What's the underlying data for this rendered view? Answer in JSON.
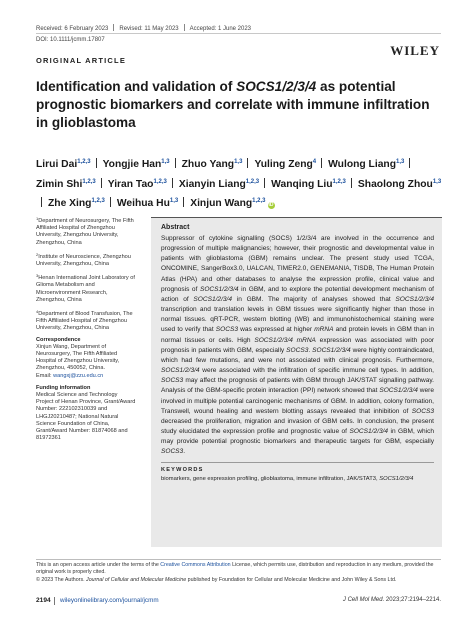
{
  "header": {
    "received": "Received: 6 February 2023",
    "revised": "Revised: 11 May 2023",
    "accepted": "Accepted: 1 June 2023",
    "doi": "DOI: 10.1111/jcmm.17807",
    "publisher": "WILEY",
    "article_type": "ORIGINAL ARTICLE"
  },
  "title": {
    "part1": "Identification and validation of ",
    "gene": "SOCS1/2/3/4",
    "part2": " as potential prognostic biomarkers and correlate with immune infiltration in glioblastoma"
  },
  "authors": [
    {
      "name": "Lirui Dai",
      "sup": "1,2,3"
    },
    {
      "name": "Yongjie Han",
      "sup": "1,3"
    },
    {
      "name": "Zhuo Yang",
      "sup": "1,3"
    },
    {
      "name": "Yuling Zeng",
      "sup": "4"
    },
    {
      "name": "Wulong Liang",
      "sup": "1,3"
    },
    {
      "name": "Zimin Shi",
      "sup": "1,2,3"
    },
    {
      "name": "Yiran Tao",
      "sup": "1,2,3"
    },
    {
      "name": "Xianyin Liang",
      "sup": "1,2,3"
    },
    {
      "name": "Wanqing Liu",
      "sup": "1,2,3"
    },
    {
      "name": "Shaolong Zhou",
      "sup": "1,3"
    },
    {
      "name": "Zhe Xing",
      "sup": "1,2,3"
    },
    {
      "name": "Weihua Hu",
      "sup": "1,3"
    },
    {
      "name": "Xinjun Wang",
      "sup": "1,2,3"
    }
  ],
  "affiliations": [
    {
      "sup": "1",
      "text": "Department of Neurosurgery, The Fifth Affiliated Hospital of Zhengzhou University, Zhengzhou University, Zhengzhou, China"
    },
    {
      "sup": "2",
      "text": "Institute of Neuroscience, Zhengzhou University, Zhengzhou, China"
    },
    {
      "sup": "3",
      "text": "Henan International Joint Laboratory of Glioma Metabolism and Microenvironment Research, Zhengzhou, China"
    },
    {
      "sup": "4",
      "text": "Department of Blood Transfusion, The Fifth Affiliated Hospital of Zhengzhou University, Zhengzhou, China"
    }
  ],
  "correspondence": {
    "heading": "Correspondence",
    "text": "Xinjun Wang, Department of Neurosurgery, The Fifth Affiliated Hospital of Zhengzhou University, Zhengzhou, 450052, China.",
    "email_label": "Email: ",
    "email": "wangxj@zzu.edu.cn"
  },
  "funding": {
    "heading": "Funding information",
    "text": "Medical Science and Technology Project of Henan Province, Grant/Award Number: 222102310039 and LHGJ20210487; National Natural Science Foundation of China, Grant/Award Number: 81874068 and 81972361"
  },
  "abstract": {
    "heading": "Abstract",
    "segments": [
      {
        "t": "Suppressor of cytokine signalling (SOCS) 1/2/3/4 are involved in the occurrence and progression of multiple malignancies; however, their prognostic and developmental value in patients with glioblastoma (GBM) remains unclear. The present study used TCGA, ONCOMINE, SangerBox3.0, UALCAN, TIMER2.0, GENEMANIA, TISDB, The Human Protein Atlas (HPA) and other databases to analyse the expression profile, clinical value and prognosis of "
      },
      {
        "t": "SOCS1/2/3/4",
        "i": true
      },
      {
        "t": " in GBM, and to explore the potential development mechanism of action of "
      },
      {
        "t": "SOCS1/2/3/4",
        "i": true
      },
      {
        "t": " in GBM. The majority of analyses showed that "
      },
      {
        "t": "SOCS1/2/3/4",
        "i": true
      },
      {
        "t": " transcription and translation levels in GBM tissues were significantly higher than those in normal tissues. qRT-PCR, western blotting (WB) and immunohistochemical staining were used to verify that "
      },
      {
        "t": "SOCS3",
        "i": true
      },
      {
        "t": " was expressed at higher "
      },
      {
        "t": "mRNA",
        "i": true
      },
      {
        "t": " and protein levels in GBM than in normal tissues or cells. High "
      },
      {
        "t": "SOCS1/2/3/4 mRNA",
        "i": true
      },
      {
        "t": " expression was associated with poor prognosis in patients with GBM, especially "
      },
      {
        "t": "SOCS3",
        "i": true
      },
      {
        "t": ". "
      },
      {
        "t": "SOCS1/2/3/4",
        "i": true
      },
      {
        "t": " were highly contraindicated, which had few mutations, and were not associated with clinical prognosis. Furthermore, "
      },
      {
        "t": "SOCS1/2/3/4",
        "i": true
      },
      {
        "t": " were associated with the infiltration of specific immune cell types. In addition, "
      },
      {
        "t": "SOCS3",
        "i": true
      },
      {
        "t": " may affect the prognosis of patients with GBM through JAK/STAT signalling pathway. Analysis of the GBM-specific protein interaction (PPI) network showed that "
      },
      {
        "t": "SOCS1/2/3/4",
        "i": true
      },
      {
        "t": " were involved in multiple potential carcinogenic mechanisms of GBM. In addition, colony formation, Transwell, wound healing and western blotting assays revealed that inhibition of "
      },
      {
        "t": "SOCS3",
        "i": true
      },
      {
        "t": " decreased the proliferation, migration and invasion of GBM cells. In conclusion, the present study elucidated the expression profile and prognostic value of "
      },
      {
        "t": "SOCS1/2/3/4",
        "i": true
      },
      {
        "t": " in GBM, which may provide potential prognostic biomarkers and therapeutic targets for GBM, especially "
      },
      {
        "t": "SOCS3",
        "i": true
      },
      {
        "t": "."
      }
    ]
  },
  "keywords": {
    "heading": "KEYWORDS",
    "text": "biomarkers, gene expression profiling, glioblastoma, immune infiltration, JAK/STAT3, ",
    "text_italic": "SOCS1/2/3/4"
  },
  "license": {
    "line1_pre": "This is an open access article under the terms of the ",
    "line1_link": "Creative Commons Attribution",
    "line1_post": " License, which permits use, distribution and reproduction in any medium, provided the original work is properly cited.",
    "line2_pre": "© 2023 The Authors. ",
    "line2_journal": "Journal of Cellular and Molecular Medicine",
    "line2_post": " published by Foundation for Cellular and Molecular Medicine and John Wiley & Sons Ltd."
  },
  "footer": {
    "page_number": "2194",
    "site": "wileyonlinelibrary.com/journal/jcmm",
    "journal_abbrev": "J Cell Mol Med.",
    "citation": " 2023;27:2194–2214."
  }
}
